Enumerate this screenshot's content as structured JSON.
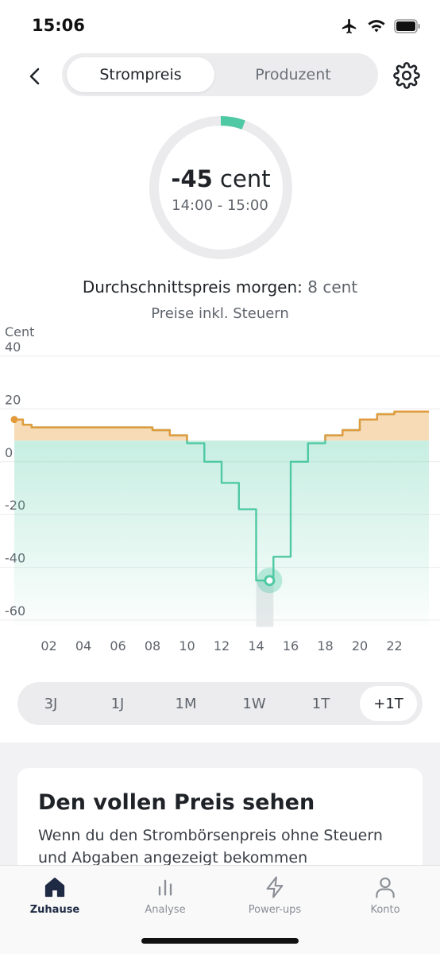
{
  "status_bar": {
    "time": "15:06"
  },
  "header": {
    "tabs": [
      {
        "label": "Strompreis",
        "active": true
      },
      {
        "label": "Produzent",
        "active": false
      }
    ]
  },
  "current_price": {
    "value": "-45",
    "unit": "cent",
    "time_range": "14:00 - 15:00"
  },
  "average": {
    "label": "Durchschnittspreis morgen:",
    "value": "8 cent"
  },
  "tax_note": "Preise inkl. Steuern",
  "chart_data": {
    "type": "line",
    "ylabel": "Cent",
    "ylim": [
      -62,
      40
    ],
    "yticks": [
      40,
      20,
      0,
      -20,
      -40,
      -60
    ],
    "xlim": [
      0,
      24
    ],
    "xticks": [
      "02",
      "04",
      "06",
      "08",
      "10",
      "12",
      "14",
      "16",
      "18",
      "20",
      "22"
    ],
    "average": 8,
    "highlight_hour": 14,
    "series": [
      {
        "step": "post",
        "x": [
          0,
          0.5,
          1,
          2,
          3,
          4,
          5,
          6,
          7,
          8,
          9,
          10,
          11,
          12,
          13,
          14,
          15,
          16,
          17,
          18,
          19,
          20,
          21,
          22,
          23,
          24
        ],
        "y": [
          16,
          14,
          13,
          13,
          13,
          13,
          13,
          13,
          13,
          12,
          10,
          7,
          0,
          -8,
          -18,
          -45,
          -36,
          0,
          7,
          10,
          12,
          16,
          18,
          19,
          19,
          19
        ]
      }
    ],
    "colors": {
      "below_avg": "#4fc9a3",
      "above_avg": "#e39a3b"
    }
  },
  "ranges": [
    {
      "label": "3J",
      "active": false
    },
    {
      "label": "1J",
      "active": false
    },
    {
      "label": "1M",
      "active": false
    },
    {
      "label": "1W",
      "active": false
    },
    {
      "label": "1T",
      "active": false
    },
    {
      "label": "+1T",
      "active": true
    }
  ],
  "promo": {
    "title": "Den vollen Preis sehen",
    "text": "Wenn du den Strombörsenpreis ohne Steuern und Abgaben angezeigt bekommen"
  },
  "tab_bar": [
    {
      "label": "Zuhause",
      "icon": "home-icon",
      "active": true
    },
    {
      "label": "Analyse",
      "icon": "bar-chart-icon",
      "active": false
    },
    {
      "label": "Power-ups",
      "icon": "bolt-icon",
      "active": false
    },
    {
      "label": "Konto",
      "icon": "user-icon",
      "active": false
    }
  ]
}
